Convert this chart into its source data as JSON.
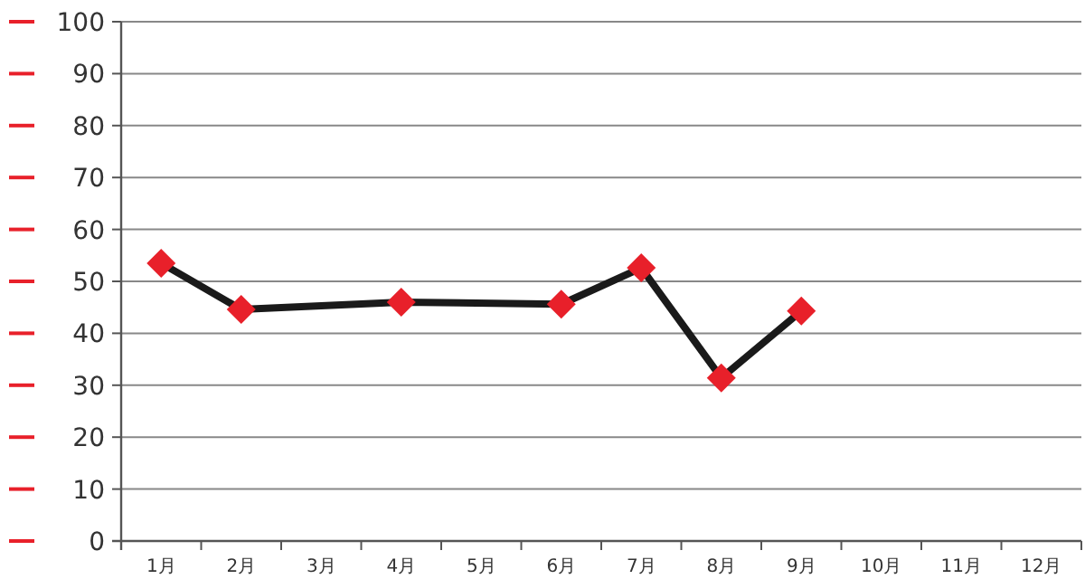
{
  "chart_data": {
    "type": "line",
    "categories": [
      "1月",
      "2月",
      "3月",
      "4月",
      "5月",
      "6月",
      "7月",
      "8月",
      "9月",
      "10月",
      "11月",
      "12月"
    ],
    "series": [
      {
        "color": "#1a1a1a",
        "colors": [
          "#e8202a",
          "#e8202a",
          null,
          "#e8202a",
          null,
          "#e8202a",
          "#e8202a",
          "#e8202a",
          "#e8202a",
          null,
          null,
          null
        ],
        "values": [
          53.5,
          44.6,
          null,
          46,
          null,
          45.6,
          52.6,
          31.4,
          44.3,
          null,
          null,
          null
        ]
      }
    ],
    "ylim": [
      0,
      100
    ],
    "yticks": [
      0,
      10,
      20,
      30,
      40,
      50,
      60,
      70,
      80,
      90,
      100
    ],
    "grid": "y",
    "marker": "diamond",
    "line_style": "solid"
  }
}
